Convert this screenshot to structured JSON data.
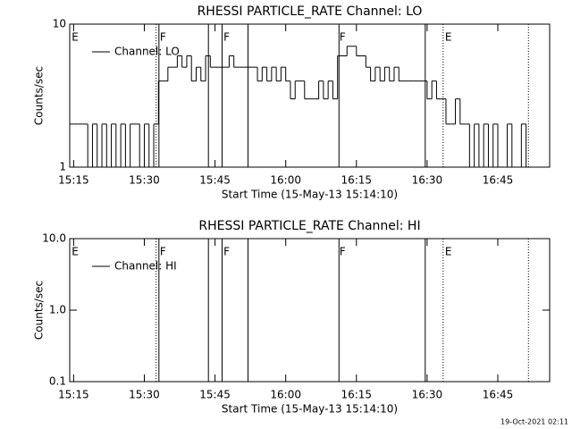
{
  "chart_data": [
    {
      "type": "line",
      "title": "RHESSI PARTICLE_RATE Channel: LO",
      "xlabel": "Start Time (15-May-13 15:14:10)",
      "ylabel": "Counts/sec",
      "log_y": true,
      "steps": true,
      "color": "#000000",
      "xlim": [
        914.17,
        1016
      ],
      "ylim": [
        1,
        10
      ],
      "xticks": [
        {
          "value": 915,
          "label": "15:15"
        },
        {
          "value": 930,
          "label": "15:30"
        },
        {
          "value": 945,
          "label": "15:45"
        },
        {
          "value": 960,
          "label": "16:00"
        },
        {
          "value": 975,
          "label": "16:15"
        },
        {
          "value": 990,
          "label": "16:30"
        },
        {
          "value": 1005,
          "label": "16:45"
        }
      ],
      "yticks": [
        1,
        10
      ],
      "x": [
        914,
        915,
        916,
        917,
        918,
        919,
        920,
        921,
        922,
        923,
        924,
        925,
        926,
        927,
        928,
        929,
        930,
        931,
        932,
        933,
        934,
        935,
        936,
        937,
        938,
        939,
        940,
        941,
        942,
        943,
        944,
        945,
        946,
        947,
        948,
        949,
        950,
        951,
        952,
        953,
        954,
        955,
        956,
        957,
        958,
        959,
        960,
        961,
        962,
        963,
        964,
        965,
        966,
        967,
        968,
        969,
        970,
        971,
        972,
        973,
        974,
        975,
        976,
        977,
        978,
        979,
        980,
        981,
        982,
        983,
        984,
        985,
        986,
        987,
        988,
        989,
        990,
        991,
        992,
        993,
        994,
        995,
        996,
        997,
        998,
        999,
        1000,
        1001,
        1002,
        1003,
        1004,
        1005,
        1006,
        1007,
        1008,
        1009,
        1010,
        1011
      ],
      "series": [
        {
          "name": "Channel: LO",
          "values": [
            2,
            2,
            2,
            2,
            1,
            2,
            1,
            2,
            1,
            2,
            1,
            2,
            1,
            2,
            2,
            1,
            2,
            1,
            2,
            4,
            4,
            5,
            5,
            6,
            5,
            6,
            4,
            5,
            4,
            6,
            5,
            5,
            5,
            5,
            6,
            5,
            5,
            5,
            5,
            5,
            4,
            5,
            4,
            5,
            4,
            5,
            4,
            3,
            4,
            4,
            3,
            3,
            3,
            4,
            3,
            4,
            3,
            6,
            6,
            7,
            7,
            6,
            6,
            5,
            4,
            5,
            4,
            5,
            4,
            5,
            4,
            4,
            4,
            4,
            4,
            4,
            3,
            4,
            3,
            3,
            2,
            2,
            3,
            2,
            2,
            1,
            2,
            1,
            2,
            1,
            2,
            1,
            1,
            2,
            1,
            1,
            2,
            1
          ]
        }
      ],
      "vlines": [
        {
          "x": 932.5,
          "style": "dotted"
        },
        {
          "x": 933.1,
          "style": "solid"
        },
        {
          "x": 943.6,
          "style": "solid"
        },
        {
          "x": 946.5,
          "style": "solid"
        },
        {
          "x": 952.0,
          "style": "solid"
        },
        {
          "x": 971.3,
          "style": "solid"
        },
        {
          "x": 989.6,
          "style": "solid"
        },
        {
          "x": 993.4,
          "style": "dotted"
        },
        {
          "x": 1011.5,
          "style": "dotted"
        }
      ],
      "flags": [
        {
          "x": 914.6,
          "label": "E"
        },
        {
          "x": 933.3,
          "label": "F"
        },
        {
          "x": 946.8,
          "label": "F"
        },
        {
          "x": 971.4,
          "label": "F"
        },
        {
          "x": 993.8,
          "label": "E"
        }
      ]
    },
    {
      "type": "line",
      "title": "RHESSI PARTICLE_RATE Channel: HI",
      "xlabel": "Start Time (15-May-13 15:14:10)",
      "ylabel": "Counts/sec",
      "log_y": true,
      "steps": true,
      "color": "#000000",
      "xlim": [
        914.17,
        1016
      ],
      "ylim": [
        0.1,
        10
      ],
      "xticks": [
        {
          "value": 915,
          "label": "15:15"
        },
        {
          "value": 930,
          "label": "15:30"
        },
        {
          "value": 945,
          "label": "15:45"
        },
        {
          "value": 960,
          "label": "16:00"
        },
        {
          "value": 975,
          "label": "16:15"
        },
        {
          "value": 990,
          "label": "16:30"
        },
        {
          "value": 1005,
          "label": "16:45"
        }
      ],
      "yticks": [
        {
          "value": 0.1,
          "label": "0.1"
        },
        {
          "value": 1,
          "label": "1.0"
        },
        {
          "value": 10,
          "label": "10.0"
        }
      ],
      "series": [
        {
          "name": "Channel: HI",
          "values": []
        }
      ],
      "vlines": [
        {
          "x": 932.5,
          "style": "dotted"
        },
        {
          "x": 933.1,
          "style": "solid"
        },
        {
          "x": 943.6,
          "style": "solid"
        },
        {
          "x": 946.5,
          "style": "solid"
        },
        {
          "x": 952.0,
          "style": "solid"
        },
        {
          "x": 971.3,
          "style": "solid"
        },
        {
          "x": 989.6,
          "style": "solid"
        },
        {
          "x": 993.4,
          "style": "dotted"
        },
        {
          "x": 1011.5,
          "style": "dotted"
        }
      ],
      "flags": [
        {
          "x": 914.6,
          "label": "E"
        },
        {
          "x": 933.3,
          "label": "F"
        },
        {
          "x": 946.8,
          "label": "F"
        },
        {
          "x": 971.4,
          "label": "F"
        },
        {
          "x": 993.8,
          "label": "E"
        }
      ]
    }
  ],
  "footer": "19-Oct-2021 02:11"
}
